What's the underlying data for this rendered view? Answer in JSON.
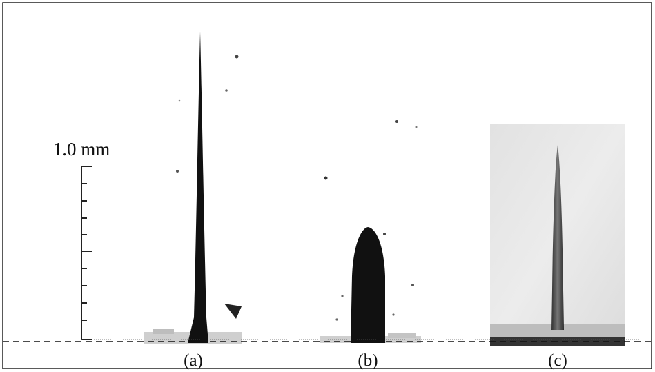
{
  "scale_bar": {
    "label": "1.0 mm"
  },
  "panels": [
    {
      "label": "(a)"
    },
    {
      "label": "(b)"
    },
    {
      "label": "(c)"
    }
  ]
}
